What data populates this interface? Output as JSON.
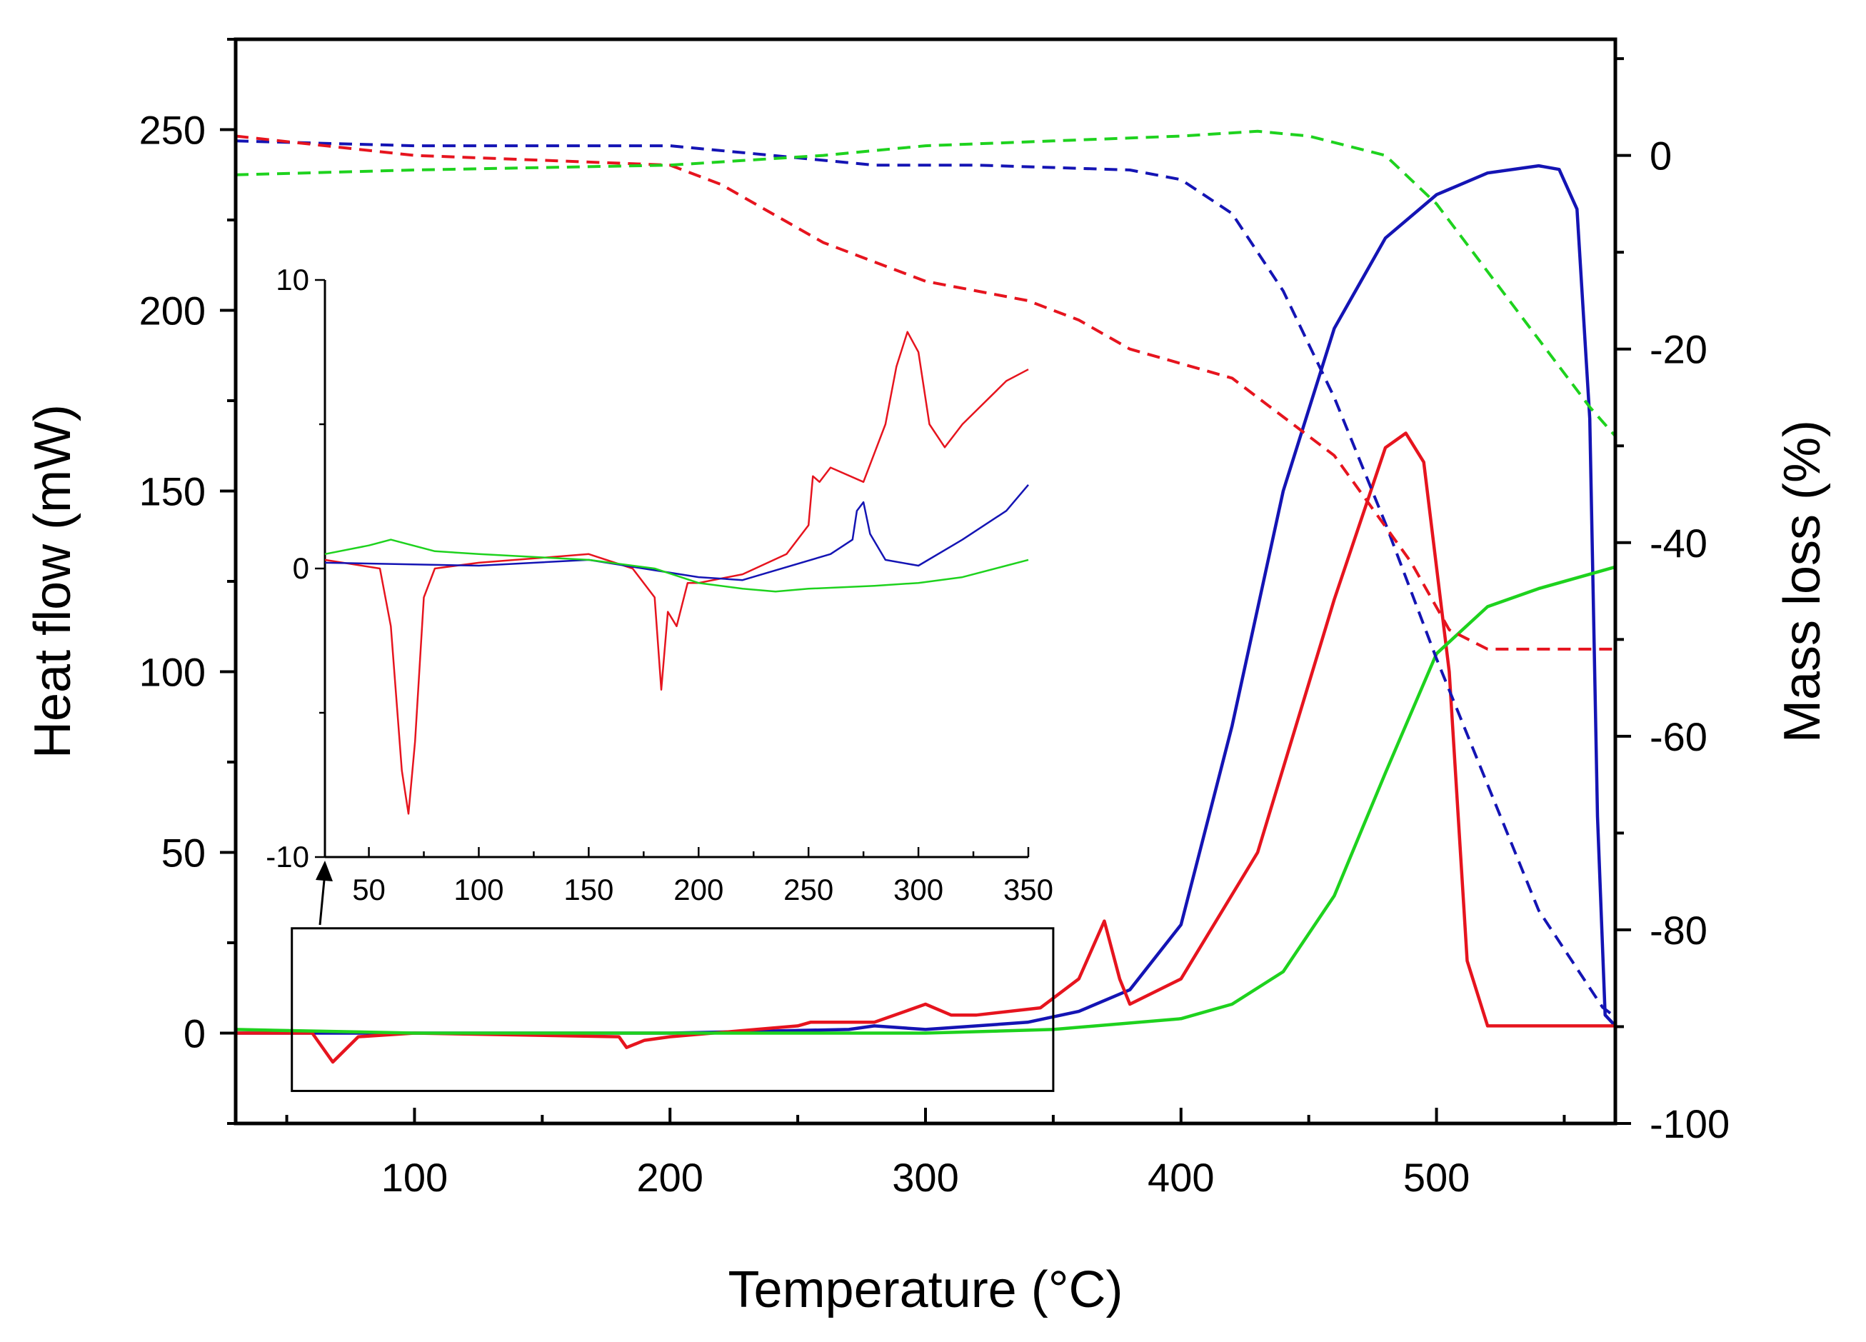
{
  "chart_data": [
    {
      "type": "line",
      "role": "main",
      "title": "",
      "xlabel": "Temperature (°C)",
      "ylabel_left": "Heat flow (mW)",
      "ylabel_right": "Mass loss (%)",
      "xlim": [
        30,
        570
      ],
      "ylim_left": [
        -25,
        275
      ],
      "ylim_right": [
        -100,
        12
      ],
      "xticks": [
        100,
        200,
        300,
        400,
        500
      ],
      "yticks_left": [
        0,
        50,
        100,
        150,
        200,
        250
      ],
      "yticks_right": [
        0,
        -20,
        -40,
        -60,
        -80,
        -100
      ],
      "xtick_labels": [
        "100",
        "200",
        "300",
        "400",
        "500"
      ],
      "ytick_labels_left": [
        "0",
        "50",
        "100",
        "150",
        "200",
        "250"
      ],
      "ytick_labels_right": [
        "0",
        "-20",
        "-40",
        "-60",
        "-80",
        "-100"
      ],
      "highlight_box": {
        "x": [
          52,
          350
        ],
        "y": [
          -16,
          29
        ]
      },
      "series": [
        {
          "name": "heat-flow-blue",
          "color": "#1414b4",
          "style": "solid",
          "axis": "left",
          "x": [
            30,
            100,
            200,
            270,
            280,
            300,
            340,
            360,
            380,
            400,
            420,
            440,
            460,
            480,
            500,
            520,
            540,
            548,
            555,
            560,
            563,
            566,
            570
          ],
          "y": [
            0,
            0,
            0,
            1,
            2,
            1,
            3,
            6,
            12,
            30,
            85,
            150,
            195,
            220,
            232,
            238,
            240,
            239,
            228,
            170,
            60,
            5,
            2
          ]
        },
        {
          "name": "heat-flow-red",
          "color": "#e6141e",
          "style": "solid",
          "axis": "left",
          "x": [
            30,
            60,
            68,
            78,
            100,
            180,
            183,
            190,
            200,
            250,
            255,
            280,
            300,
            310,
            320,
            345,
            360,
            370,
            376,
            380,
            400,
            430,
            460,
            480,
            488,
            495,
            505,
            512,
            520,
            540,
            570
          ],
          "y": [
            0,
            0,
            -8,
            -1,
            0,
            -1,
            -4,
            -2,
            -1,
            2,
            3,
            3,
            8,
            5,
            5,
            7,
            15,
            31,
            15,
            8,
            15,
            50,
            120,
            162,
            166,
            158,
            100,
            20,
            2,
            2,
            2
          ]
        },
        {
          "name": "heat-flow-green",
          "color": "#1ed21e",
          "style": "solid",
          "axis": "left",
          "x": [
            30,
            100,
            200,
            300,
            350,
            400,
            420,
            440,
            460,
            480,
            500,
            520,
            540,
            560,
            570
          ],
          "y": [
            1,
            0,
            0,
            0,
            1,
            4,
            8,
            17,
            38,
            72,
            105,
            118,
            123,
            127,
            129
          ]
        },
        {
          "name": "mass-loss-blue",
          "color": "#1414b4",
          "style": "dashed",
          "axis": "right",
          "x": [
            30,
            100,
            200,
            240,
            280,
            320,
            380,
            400,
            420,
            440,
            460,
            480,
            500,
            520,
            540,
            560,
            565,
            570
          ],
          "y": [
            1.5,
            1,
            1,
            0,
            -1,
            -1,
            -1.5,
            -2.5,
            -6,
            -14,
            -25,
            -38,
            -52,
            -65,
            -78,
            -86,
            -88,
            -89
          ]
        },
        {
          "name": "mass-loss-red",
          "color": "#e6141e",
          "style": "dashed",
          "axis": "right",
          "x": [
            30,
            100,
            200,
            220,
            240,
            260,
            300,
            340,
            360,
            380,
            420,
            460,
            490,
            505,
            520,
            570
          ],
          "y": [
            2,
            0,
            -1,
            -3,
            -6,
            -9,
            -13,
            -15,
            -17,
            -20,
            -23,
            -31,
            -42,
            -49,
            -51,
            -51
          ]
        },
        {
          "name": "mass-loss-green",
          "color": "#1ed21e",
          "style": "dashed",
          "axis": "right",
          "x": [
            30,
            100,
            200,
            260,
            300,
            350,
            400,
            430,
            450,
            480,
            500,
            520,
            540,
            560,
            570
          ],
          "y": [
            -2,
            -1.5,
            -1,
            0,
            1,
            1.5,
            2,
            2.5,
            2,
            0,
            -5,
            -12,
            -19,
            -26,
            -29
          ]
        }
      ]
    },
    {
      "type": "line",
      "role": "inset",
      "xlim": [
        30,
        350
      ],
      "ylim": [
        -10,
        10
      ],
      "xticks": [
        50,
        100,
        150,
        200,
        250,
        300,
        350
      ],
      "yticks": [
        -10,
        0,
        10
      ],
      "xtick_labels": [
        "50",
        "100",
        "150",
        "200",
        "250",
        "300",
        "350"
      ],
      "ytick_labels": [
        "-10",
        "0",
        "10"
      ],
      "series": [
        {
          "name": "inset-red",
          "color": "#e6141e",
          "x": [
            30,
            55,
            60,
            65,
            68,
            71,
            75,
            80,
            100,
            150,
            170,
            180,
            183,
            186,
            190,
            195,
            200,
            220,
            240,
            250,
            252,
            255,
            260,
            275,
            285,
            290,
            295,
            300,
            305,
            312,
            320,
            340,
            350
          ],
          "y": [
            0.3,
            0,
            -2,
            -7,
            -8.5,
            -6,
            -1,
            0,
            0.2,
            0.5,
            0,
            -1,
            -4.2,
            -1.5,
            -2,
            -0.5,
            -0.5,
            -0.2,
            0.5,
            1.5,
            3.2,
            3,
            3.5,
            3,
            5,
            7,
            8.2,
            7.5,
            5,
            4.2,
            5,
            6.5,
            6.9
          ]
        },
        {
          "name": "inset-blue",
          "color": "#1414b4",
          "x": [
            30,
            100,
            150,
            200,
            220,
            260,
            270,
            272,
            275,
            278,
            285,
            300,
            320,
            340,
            350
          ],
          "y": [
            0.2,
            0.1,
            0.3,
            -0.3,
            -0.4,
            0.5,
            1,
            2,
            2.3,
            1.2,
            0.3,
            0.1,
            1,
            2,
            2.9
          ]
        },
        {
          "name": "inset-green",
          "color": "#1ed21e",
          "x": [
            30,
            50,
            60,
            80,
            100,
            150,
            180,
            200,
            220,
            235,
            250,
            280,
            300,
            320,
            340,
            350
          ],
          "y": [
            0.5,
            0.8,
            1,
            0.6,
            0.5,
            0.3,
            0,
            -0.5,
            -0.7,
            -0.8,
            -0.7,
            -0.6,
            -0.5,
            -0.3,
            0.1,
            0.3
          ]
        }
      ]
    }
  ]
}
